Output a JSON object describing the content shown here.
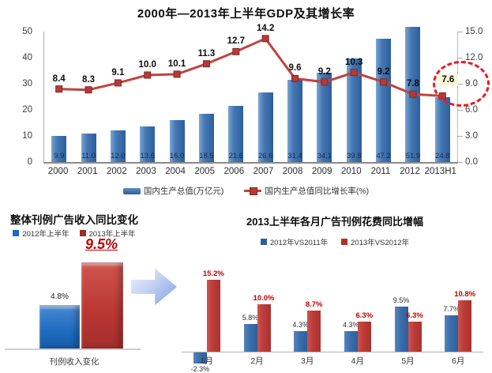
{
  "accent_colors": {
    "bar_blue": "#3a6dab",
    "line_red": "#bf4340",
    "income_blue": "#1e6bbf",
    "income_red": "#b93633",
    "label_red": "#c00000",
    "highlight_bg": "#fcf8d7",
    "highlight_circle": "#ea1c24"
  },
  "chart_data": [
    {
      "id": "gdp",
      "type": "bar",
      "title": "2000年—2013年上半年GDP及其增长率",
      "categories": [
        "2000",
        "2001",
        "2002",
        "2003",
        "2004",
        "2005",
        "2006",
        "2007",
        "2008",
        "2009",
        "2010",
        "2011",
        "2012",
        "2013H1"
      ],
      "series": [
        {
          "name": "国内生产总值(万亿元)",
          "type": "bar",
          "color": "#3a6dab",
          "values": [
            9.9,
            11.0,
            12.0,
            13.6,
            16.0,
            18.5,
            21.6,
            26.6,
            31.4,
            34.1,
            39.8,
            47.2,
            51.9,
            24.8
          ],
          "labels": [
            "9.9",
            "11.0",
            "12.0",
            "13.6",
            "16.0",
            "18.5",
            "21.6",
            "26.6",
            "31.4",
            "34.1",
            "39.8",
            "47.2",
            "51.9",
            "24.8"
          ]
        },
        {
          "name": "国内生产总值同比增长率(%)",
          "type": "line",
          "color": "#bf4340",
          "values": [
            8.4,
            8.3,
            9.1,
            10.0,
            10.1,
            11.3,
            12.7,
            14.2,
            9.6,
            9.2,
            10.3,
            9.2,
            7.8,
            7.6
          ],
          "labels": [
            "8.4",
            "8.3",
            "9.1",
            "10.0",
            "10.1",
            "11.3",
            "12.7",
            "14.2",
            "9.6",
            "9.2",
            "10.3",
            "9.2",
            "7.8",
            "7.6"
          ]
        }
      ],
      "left_axis": {
        "max": 50,
        "ticks": [
          "50",
          "40",
          "30",
          "20",
          "10",
          "0"
        ]
      },
      "right_axis": {
        "max": 15,
        "ticks": [
          "15.0",
          "12.0",
          "9.0",
          "6.0",
          "3.0",
          "0.0"
        ]
      },
      "highlight": {
        "category": "2013H1",
        "value": 7.6,
        "label": "7.6",
        "style": "yellow label with red dashed circle"
      },
      "grid": "off",
      "legend_position": "bottom"
    },
    {
      "id": "income",
      "type": "bar",
      "title": "整体刊例广告收入同比变化",
      "categories": [
        "刊例收入变化"
      ],
      "series": [
        {
          "name": "2012年上半年",
          "color": "#1e6bbf",
          "values": [
            4.8
          ],
          "labels": [
            "4.8%"
          ]
        },
        {
          "name": "2013年上半年",
          "color": "#b93633",
          "values": [
            9.5
          ],
          "labels": [
            "9.5%"
          ]
        }
      ],
      "annotation": "9.5%",
      "xlabel": "刊例收入变化",
      "grid": "off",
      "legend_position": "top"
    },
    {
      "id": "monthly",
      "type": "bar",
      "title": "2013上半年各月广告刊例花费同比增幅",
      "categories": [
        "1月",
        "2月",
        "3月",
        "4月",
        "5月",
        "6月"
      ],
      "series": [
        {
          "name": "2012年VS2011年",
          "color": "#3a6dab",
          "values": [
            -2.3,
            5.8,
            4.3,
            4.3,
            9.5,
            7.7
          ],
          "labels": [
            "-2.3%",
            "5.8%",
            "4.3%",
            "4.3%",
            "9.5%",
            "7.7%"
          ]
        },
        {
          "name": "2013年VS2012年",
          "color": "#bb3b38",
          "values": [
            15.2,
            10.0,
            8.7,
            6.3,
            6.3,
            10.8
          ],
          "labels": [
            "15.2%",
            "10.0%",
            "8.7%",
            "6.3%",
            "6.3%",
            "10.8%"
          ]
        }
      ],
      "grid": "off",
      "legend_position": "top"
    }
  ]
}
